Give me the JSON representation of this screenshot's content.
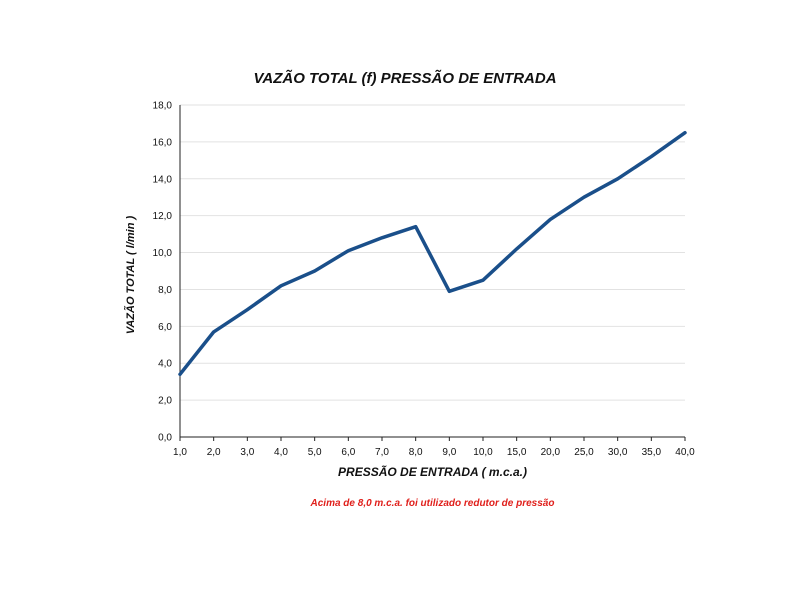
{
  "colors": {
    "line": "#1a4f8a",
    "grid": "#e2e2e2",
    "note": "#e0201c"
  },
  "footnote": "Acima de 8,0 m.c.a. foi utilizado redutor de pressão",
  "chart_data": {
    "type": "line",
    "title": "VAZÃO TOTAL (f) PRESSÃO DE ENTRADA",
    "xlabel": "PRESSÃO DE ENTRADA ( m.c.a.)",
    "ylabel": "VAZÃO TOTAL ( l/min )",
    "categories": [
      "1,0",
      "2,0",
      "3,0",
      "4,0",
      "5,0",
      "6,0",
      "7,0",
      "8,0",
      "9,0",
      "10,0",
      "15,0",
      "20,0",
      "25,0",
      "30,0",
      "35,0",
      "40,0"
    ],
    "series": [
      {
        "values": [
          3.4,
          5.7,
          6.9,
          8.2,
          9.0,
          10.1,
          10.8,
          11.4,
          7.9,
          8.5,
          10.2,
          11.8,
          13.0,
          14.0,
          15.2,
          16.5
        ]
      }
    ],
    "ylim": [
      0,
      18
    ],
    "yticks": [
      "0,0",
      "2,0",
      "4,0",
      "6,0",
      "8,0",
      "10,0",
      "12,0",
      "14,0",
      "16,0",
      "18,0"
    ],
    "grid": true,
    "legend": "none"
  }
}
